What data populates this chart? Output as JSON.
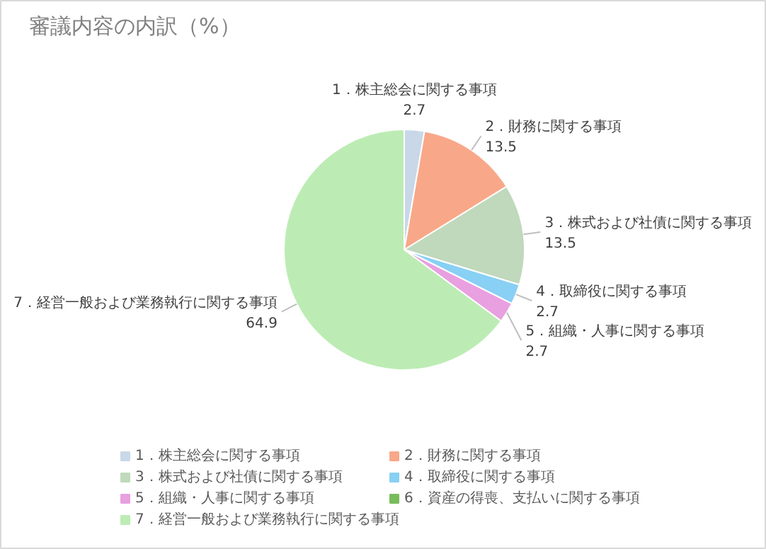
{
  "chart_data": {
    "type": "pie",
    "title": "審議内容の内訳（%）",
    "categories": [
      "1．株主総会に関する事項",
      "2．財務に関する事項",
      "3．株式および社債に関する事項",
      "4．取締役に関する事項",
      "5．組織・人事に関する事項",
      "6．資産の得喪、支払いに関する事項",
      "7．経営一般および業務執行に関する事項"
    ],
    "values": [
      2.7,
      13.5,
      13.5,
      2.7,
      2.7,
      0,
      64.9
    ],
    "colors": [
      "#c8d8e8",
      "#f8a888",
      "#c0d8bc",
      "#88d0f4",
      "#e8a0e0",
      "#78bc5c",
      "#bcecb4"
    ],
    "data_labels": true,
    "legend": "bottom"
  }
}
